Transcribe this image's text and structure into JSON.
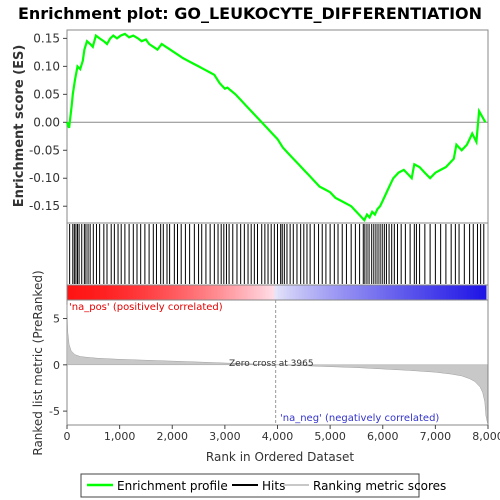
{
  "chart_data": {
    "type": "line",
    "title": "Enrichment plot: GO_LEUKOCYTE_DIFFERENTIATION",
    "es_panel": {
      "ylabel": "Enrichment score (ES)",
      "ylim": [
        -0.18,
        0.165
      ],
      "yticks": [
        0.15,
        0.1,
        0.05,
        0.0,
        -0.05,
        -0.1,
        -0.15
      ],
      "ytick_labels": [
        "0.15",
        "0.10",
        "0.05",
        "0.00",
        "-0.05",
        "-0.10",
        "-0.15"
      ],
      "series": [
        {
          "name": "Enrichment profile",
          "color": "#00ff00",
          "x": [
            0,
            40,
            90,
            110,
            150,
            200,
            250,
            300,
            330,
            380,
            440,
            490,
            550,
            620,
            700,
            760,
            820,
            880,
            950,
            1020,
            1100,
            1180,
            1260,
            1350,
            1420,
            1500,
            1560,
            1640,
            1720,
            1800,
            1880,
            1960,
            2040,
            2120,
            2200,
            2300,
            2400,
            2500,
            2600,
            2700,
            2800,
            2900,
            2950,
            3000,
            3050,
            3100,
            3200,
            3300,
            3400,
            3500,
            3600,
            3700,
            3800,
            3900,
            4000,
            4100,
            4200,
            4300,
            4400,
            4500,
            4600,
            4700,
            4800,
            4900,
            5000,
            5100,
            5200,
            5300,
            5400,
            5500,
            5600,
            5650,
            5700,
            5750,
            5800,
            5850,
            5900,
            5950,
            6000,
            6050,
            6100,
            6150,
            6200,
            6300,
            6400,
            6500,
            6550,
            6600,
            6700,
            6800,
            6900,
            7000,
            7100,
            7200,
            7300,
            7350,
            7400,
            7500,
            7600,
            7650,
            7700,
            7780,
            7830,
            7950
          ],
          "y": [
            0.0,
            -0.01,
            0.03,
            0.05,
            0.075,
            0.1,
            0.095,
            0.11,
            0.13,
            0.145,
            0.14,
            0.135,
            0.155,
            0.15,
            0.145,
            0.14,
            0.15,
            0.155,
            0.15,
            0.155,
            0.158,
            0.152,
            0.155,
            0.15,
            0.145,
            0.148,
            0.14,
            0.135,
            0.13,
            0.14,
            0.135,
            0.13,
            0.125,
            0.12,
            0.115,
            0.11,
            0.105,
            0.1,
            0.095,
            0.09,
            0.085,
            0.07,
            0.065,
            0.06,
            0.062,
            0.058,
            0.05,
            0.04,
            0.03,
            0.02,
            0.01,
            0.0,
            -0.01,
            -0.02,
            -0.03,
            -0.045,
            -0.055,
            -0.065,
            -0.075,
            -0.085,
            -0.095,
            -0.105,
            -0.115,
            -0.12,
            -0.125,
            -0.135,
            -0.14,
            -0.145,
            -0.15,
            -0.16,
            -0.17,
            -0.175,
            -0.165,
            -0.17,
            -0.16,
            -0.165,
            -0.155,
            -0.15,
            -0.14,
            -0.13,
            -0.12,
            -0.11,
            -0.1,
            -0.09,
            -0.085,
            -0.095,
            -0.1,
            -0.075,
            -0.08,
            -0.09,
            -0.1,
            -0.09,
            -0.085,
            -0.08,
            -0.07,
            -0.065,
            -0.04,
            -0.05,
            -0.04,
            -0.03,
            -0.02,
            -0.035,
            0.02,
            0.0
          ]
        }
      ]
    },
    "hits_panel": {
      "hit_positions": [
        50,
        110,
        140,
        170,
        200,
        230,
        280,
        330,
        360,
        400,
        440,
        500,
        560,
        620,
        700,
        760,
        840,
        900,
        970,
        1030,
        1100,
        1180,
        1260,
        1330,
        1400,
        1480,
        1560,
        1640,
        1700,
        1780,
        1830,
        1900,
        1950,
        2040,
        2100,
        2170,
        2250,
        2330,
        2420,
        2500,
        2560,
        2640,
        2720,
        2800,
        2870,
        2930,
        2980,
        3030,
        3080,
        3150,
        3230,
        3300,
        3370,
        3440,
        3500,
        3560,
        3620,
        3700,
        3760,
        3820,
        3880,
        3940,
        4000,
        4060,
        4090,
        4130,
        4180,
        4240,
        4300,
        4370,
        4440,
        4500,
        4560,
        4620,
        4700,
        4780,
        4850,
        4920,
        5000,
        5080,
        5150,
        5230,
        5310,
        5400,
        5480,
        5560,
        5630,
        5660,
        5700,
        5740,
        5790,
        5830,
        5870,
        5910,
        5950,
        5990,
        6030,
        6070,
        6120,
        6170,
        6220,
        6280,
        6350,
        6430,
        6520,
        6600,
        6640,
        6700,
        6800,
        6900,
        7000,
        7100,
        7200,
        7300,
        7380,
        7450,
        7550,
        7650,
        7720,
        7800,
        7860,
        7920
      ]
    },
    "ranking_bar": {
      "positive_label": "'na_pos' (positively correlated)",
      "negative_label": "'na_neg' (negatively correlated)",
      "positive_color": "#ff0000",
      "negative_color": "#0000ff",
      "zero_cross": 3965
    },
    "metric_panel": {
      "ylabel": "Ranked list metric (PreRanked)",
      "ylim": [
        -6.5,
        7
      ],
      "yticks": [
        5,
        0,
        -5
      ],
      "ytick_labels": [
        "5",
        "0",
        "-5"
      ],
      "zero_cross_label": "Zero cross at 3965",
      "x": [
        0,
        15,
        40,
        80,
        150,
        250,
        400,
        600,
        1000,
        1500,
        2000,
        2500,
        3000,
        3500,
        3965,
        4500,
        5000,
        5500,
        6000,
        6500,
        7000,
        7300,
        7500,
        7650,
        7750,
        7850,
        7900,
        7940,
        7960,
        7990
      ],
      "y": [
        6.5,
        3.5,
        2.2,
        1.5,
        1.1,
        0.9,
        0.8,
        0.7,
        0.6,
        0.5,
        0.4,
        0.3,
        0.2,
        0.1,
        0.0,
        -0.1,
        -0.2,
        -0.3,
        -0.45,
        -0.6,
        -0.8,
        -1.0,
        -1.2,
        -1.5,
        -1.8,
        -2.4,
        -3.0,
        -4.0,
        -5.5,
        -6.3
      ]
    },
    "xlabel": "Rank in Ordered Dataset",
    "xlim": [
      0,
      8000
    ],
    "xticks": [
      0,
      1000,
      2000,
      3000,
      4000,
      5000,
      6000,
      7000,
      8000
    ],
    "xtick_labels": [
      "0",
      "1,000",
      "2,000",
      "3,000",
      "4,000",
      "5,000",
      "6,000",
      "7,000",
      "8,000"
    ],
    "legend": {
      "placement": "bottom",
      "items": [
        {
          "label": "Enrichment profile",
          "color": "#00ff00"
        },
        {
          "label": "Hits",
          "color": "#000000"
        },
        {
          "label": "Ranking metric scores",
          "color": "#c8c8c8"
        }
      ]
    },
    "grid": false
  }
}
